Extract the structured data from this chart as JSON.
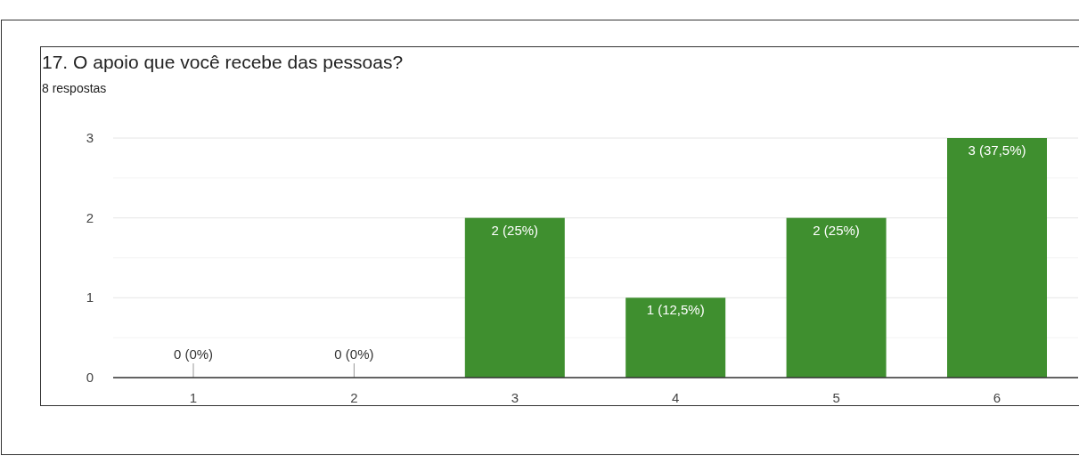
{
  "chart_data": {
    "type": "bar",
    "title": "17. O apoio que você recebe das pessoas?",
    "subtitle": "8 respostas",
    "categories": [
      "1",
      "2",
      "3",
      "4",
      "5",
      "6"
    ],
    "values": [
      0,
      0,
      2,
      1,
      2,
      3
    ],
    "value_labels": [
      "0 (0%)",
      "0 (0%)",
      "2 (25%)",
      "1 (12,5%)",
      "2 (25%)",
      "3 (37,5%)"
    ],
    "color": "#3f8f2f",
    "ylim": [
      0,
      3
    ],
    "yticks": [
      0,
      {
        "value": 0.5,
        "label": null
      },
      1,
      {
        "value": 1.5,
        "label": null
      },
      2,
      {
        "value": 2.5,
        "label": null
      },
      3
    ],
    "grid": "y"
  }
}
